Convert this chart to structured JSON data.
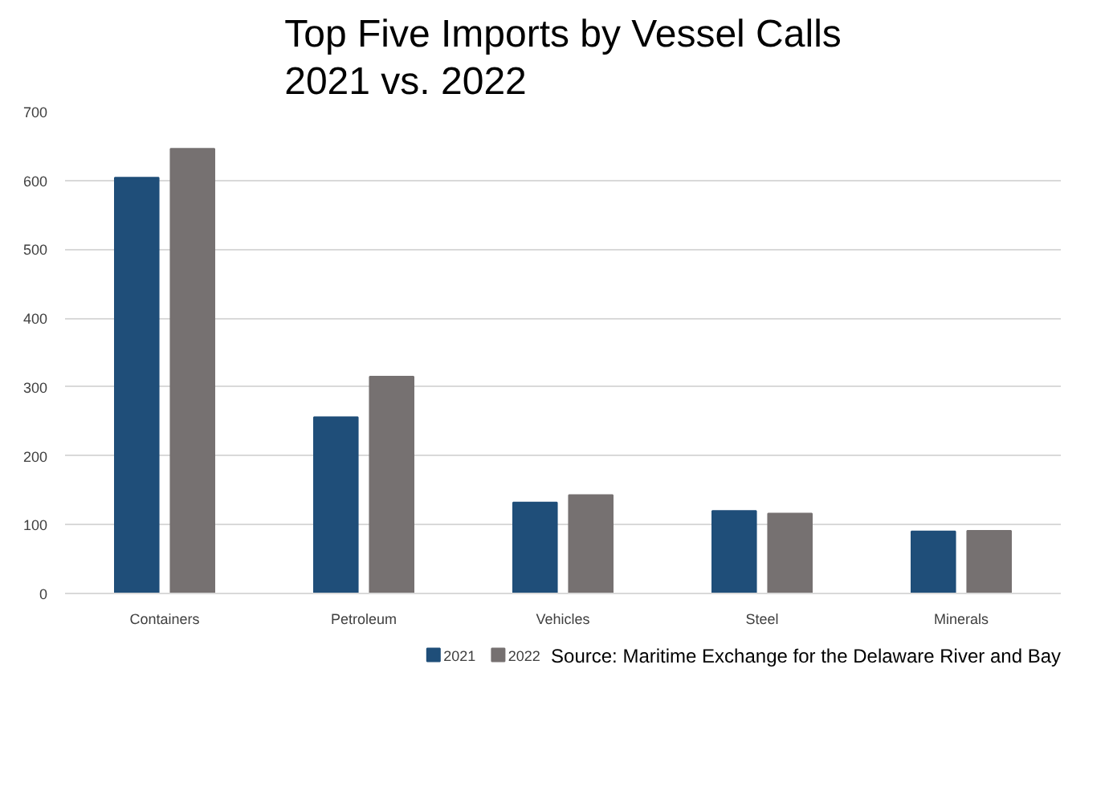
{
  "chart_data": {
    "type": "bar",
    "title": "Top Five Imports by Vessel Calls\n2021 vs. 2022",
    "categories": [
      "Containers",
      "Petroleum",
      "Vehicles",
      "Steel",
      "Minerals"
    ],
    "series": [
      {
        "name": "2021",
        "color": "#1f4e79",
        "values": [
          604,
          256,
          132,
          120,
          90
        ]
      },
      {
        "name": "2022",
        "color": "#767171",
        "values": [
          646,
          315,
          143,
          116,
          91
        ]
      }
    ],
    "ylim": [
      0,
      700
    ],
    "yticks": [
      0,
      100,
      200,
      300,
      400,
      500,
      600,
      700
    ],
    "grid": "y",
    "legend": "bottom",
    "annotations": [
      "Source: Maritime Exchange for the Delaware River and Bay"
    ]
  }
}
